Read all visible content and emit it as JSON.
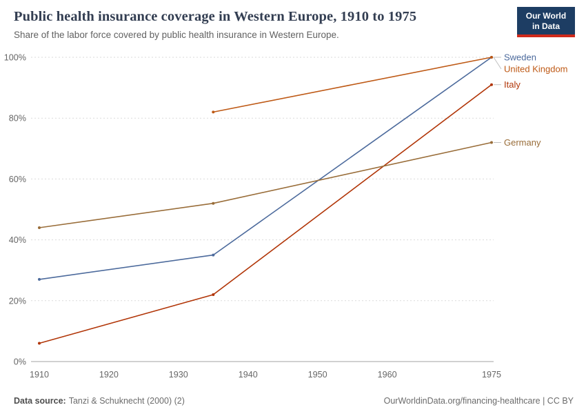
{
  "header": {
    "title": "Public health insurance coverage in Western Europe, 1910 to 1975",
    "subtitle": "Share of the labor force covered by public health insurance in Western Europe.",
    "logo": {
      "line1": "Our World",
      "line2": "in Data",
      "background": "#1d3d63",
      "accent": "#cf2a1b"
    }
  },
  "footer": {
    "source_label": "Data source:",
    "source_text": "Tanzi & Schuknecht (2000) (2)",
    "credit": "OurWorldinData.org/financing-healthcare | CC BY"
  },
  "chart_data": {
    "type": "line",
    "title": "Public health insurance coverage in Western Europe, 1910 to 1975",
    "xlabel": "",
    "ylabel": "",
    "xlim": [
      1910,
      1975
    ],
    "ylim": [
      0,
      100
    ],
    "grid": "horizontal-dashed",
    "legend_position": "right-end-labels",
    "xticks": [
      {
        "value": 1910,
        "label": "1910"
      },
      {
        "value": 1920,
        "label": "1920"
      },
      {
        "value": 1930,
        "label": "1930"
      },
      {
        "value": 1940,
        "label": "1940"
      },
      {
        "value": 1950,
        "label": "1950"
      },
      {
        "value": 1960,
        "label": "1960"
      },
      {
        "value": 1975,
        "label": "1975"
      }
    ],
    "yticks": [
      {
        "value": 0,
        "label": "0%"
      },
      {
        "value": 20,
        "label": "20%"
      },
      {
        "value": 40,
        "label": "40%"
      },
      {
        "value": 60,
        "label": "60%"
      },
      {
        "value": 80,
        "label": "80%"
      },
      {
        "value": 100,
        "label": "100%"
      }
    ],
    "series": [
      {
        "name": "Sweden",
        "color": "#4C6A9C",
        "points": [
          [
            1910,
            27
          ],
          [
            1935,
            35
          ],
          [
            1975,
            100
          ]
        ]
      },
      {
        "name": "United Kingdom",
        "color": "#BE5915",
        "points": [
          [
            1935,
            82
          ],
          [
            1975,
            100
          ]
        ]
      },
      {
        "name": "Italy",
        "color": "#B13507",
        "points": [
          [
            1910,
            6
          ],
          [
            1935,
            22
          ],
          [
            1975,
            91
          ]
        ]
      },
      {
        "name": "Germany",
        "color": "#996D39",
        "points": [
          [
            1910,
            44
          ],
          [
            1935,
            52
          ],
          [
            1975,
            72
          ]
        ]
      }
    ]
  }
}
